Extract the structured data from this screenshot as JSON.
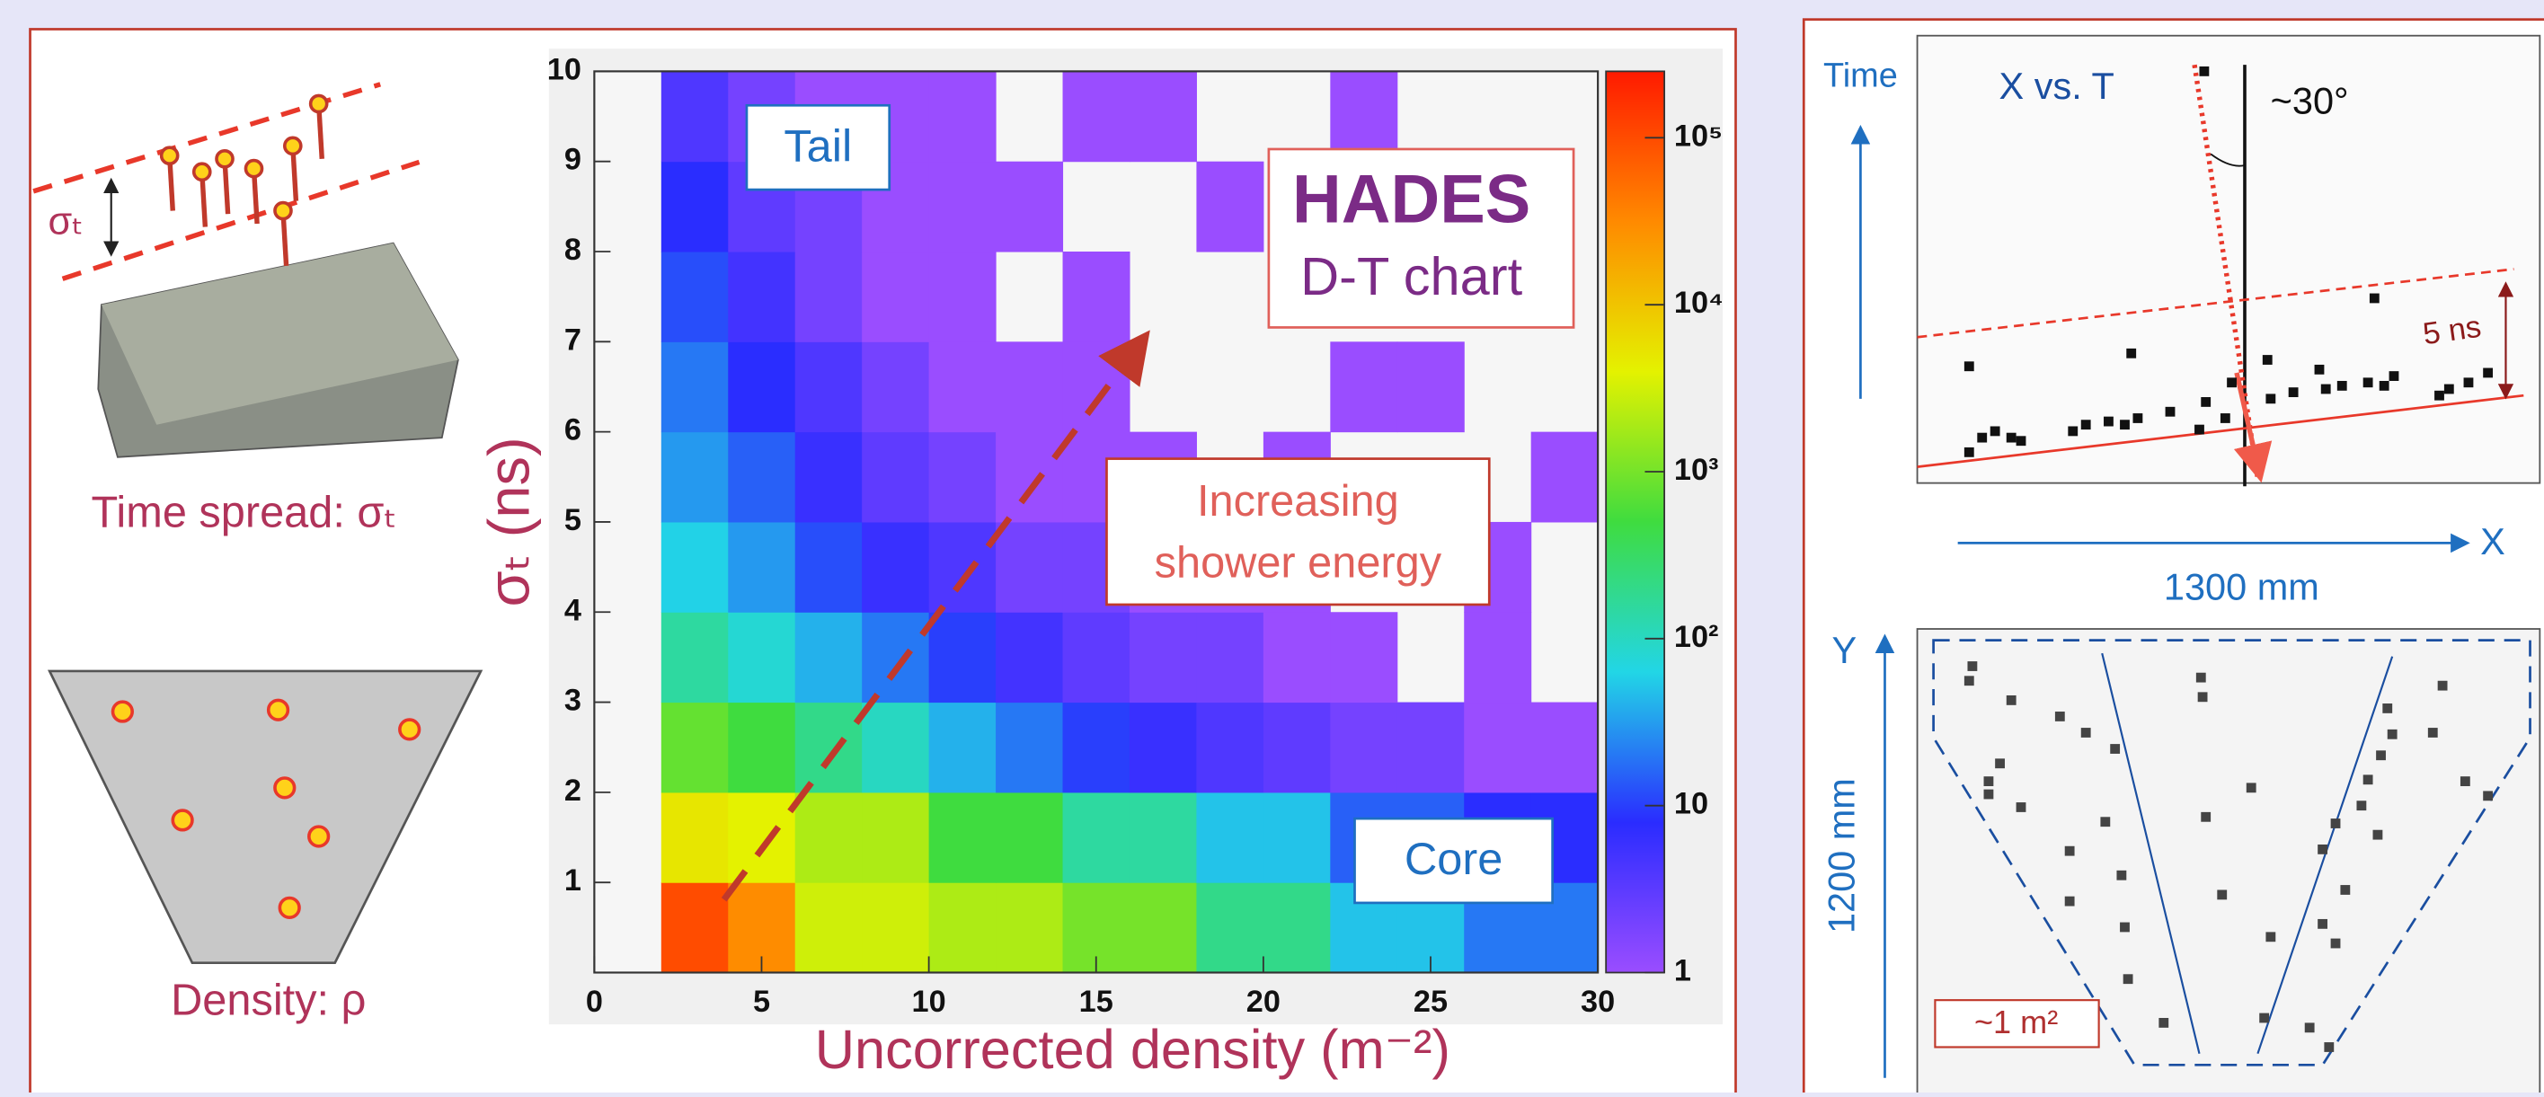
{
  "chart_data": {
    "type": "heatmap",
    "xlabel": "Uncorrected density (m⁻²)",
    "ylabel": "σₜ (ns)",
    "xbins": [
      2,
      4,
      6,
      8,
      10,
      12,
      14,
      16,
      18,
      20,
      22,
      24,
      26,
      28,
      30
    ],
    "ybins": [
      0,
      1,
      2,
      3,
      4,
      5,
      6,
      7,
      8,
      9,
      10
    ],
    "values": [
      [
        100000,
        30000,
        3000,
        3000,
        2000,
        2000,
        1000,
        1000,
        200,
        200,
        50,
        50,
        20,
        20
      ],
      [
        5000,
        4000,
        2000,
        2000,
        500,
        500,
        150,
        150,
        50,
        50,
        15,
        15,
        8,
        8
      ],
      [
        800,
        500,
        200,
        100,
        40,
        20,
        10,
        6,
        4,
        3,
        2,
        2,
        1,
        1
      ],
      [
        150,
        80,
        40,
        20,
        10,
        5,
        3,
        2,
        2,
        1,
        1,
        null,
        1,
        null
      ],
      [
        60,
        30,
        12,
        6,
        4,
        2,
        2,
        1,
        1,
        1,
        null,
        null,
        1,
        null
      ],
      [
        30,
        15,
        6,
        3,
        2,
        1,
        1,
        1,
        null,
        1,
        null,
        null,
        null,
        1
      ],
      [
        20,
        8,
        4,
        2,
        1,
        1,
        1,
        null,
        null,
        null,
        1,
        1,
        null,
        null
      ],
      [
        12,
        5,
        2,
        1,
        1,
        null,
        1,
        null,
        null,
        null,
        null,
        null,
        null,
        null
      ],
      [
        8,
        3,
        2,
        1,
        1,
        1,
        null,
        null,
        1,
        null,
        null,
        null,
        null,
        null
      ],
      [
        4,
        2,
        1,
        1,
        1,
        null,
        1,
        1,
        null,
        null,
        1,
        null,
        null,
        null
      ]
    ],
    "xlim": [
      0,
      30
    ],
    "ylim": [
      0,
      10
    ],
    "xticks": [
      0,
      5,
      10,
      15,
      20,
      25,
      30
    ],
    "yticks": [
      1,
      2,
      3,
      4,
      5,
      6,
      7,
      8,
      9,
      10
    ],
    "zlim": [
      1,
      250000
    ],
    "zlog": true,
    "zticks": [
      1,
      10,
      {
        "value": 100,
        "label": "10²"
      },
      {
        "value": 1000,
        "label": "10³"
      },
      {
        "value": 10000,
        "label": "10⁴"
      },
      {
        "value": 100000,
        "label": "10⁵"
      }
    ],
    "colormap": [
      "#9a4dff",
      "#2a2cff",
      "#22d6e6",
      "#3fdc3f",
      "#e4f200",
      "#ff8a00",
      "#ff1a00"
    ],
    "annotations": {
      "tail": "Tail",
      "core": "Core",
      "title": "HADES",
      "subtitle": "D-T chart",
      "arrow_label": [
        "Increasing",
        "shower energy"
      ]
    }
  },
  "left_panel": {
    "sigma": "σₜ",
    "time_spread": "Time spread: σₜ",
    "density": "Density: ρ"
  },
  "right_panel": {
    "time_axis": "Time",
    "xt_title": "X vs. T",
    "angle": "~30°",
    "time_window": "5 ns",
    "x_axis": "X",
    "x_size": "1300 mm",
    "y_axis": "Y",
    "y_size": "1200 mm",
    "area": "~1 m²"
  }
}
